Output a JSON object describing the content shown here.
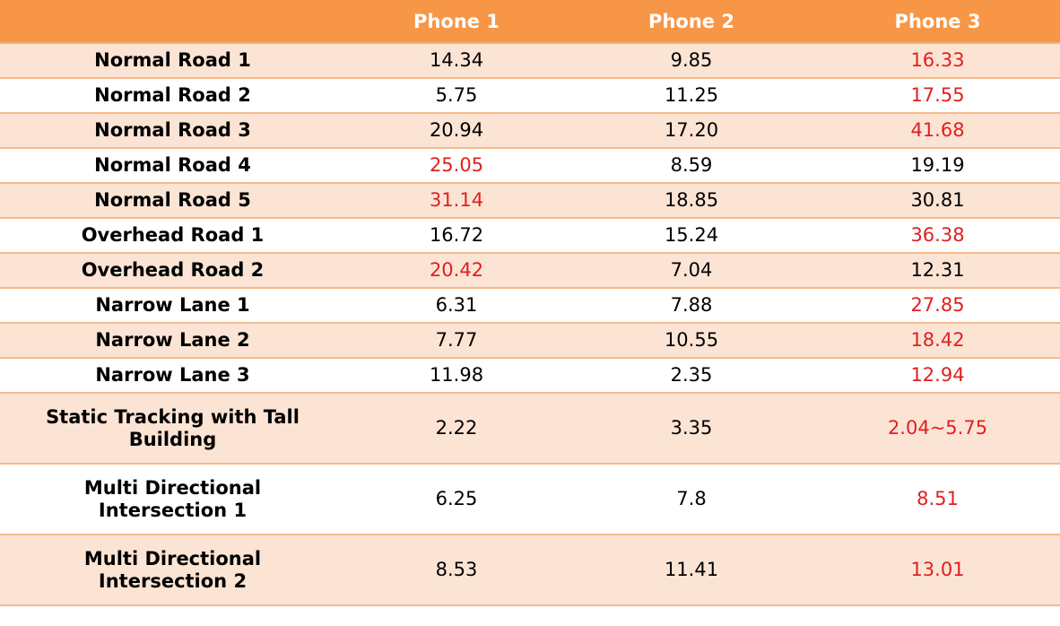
{
  "chart_data": {
    "type": "table",
    "columns": [
      "",
      "Phone 1",
      "Phone 2",
      "Phone 3"
    ],
    "rows": [
      {
        "label": "Normal Road 1",
        "values": [
          "14.34",
          "9.85",
          "16.33"
        ],
        "highlight": [
          false,
          false,
          true
        ]
      },
      {
        "label": "Normal Road 2",
        "values": [
          "5.75",
          "11.25",
          "17.55"
        ],
        "highlight": [
          false,
          false,
          true
        ]
      },
      {
        "label": "Normal Road 3",
        "values": [
          "20.94",
          "17.20",
          "41.68"
        ],
        "highlight": [
          false,
          false,
          true
        ]
      },
      {
        "label": "Normal Road 4",
        "values": [
          "25.05",
          "8.59",
          "19.19"
        ],
        "highlight": [
          true,
          false,
          false
        ]
      },
      {
        "label": "Normal Road 5",
        "values": [
          "31.14",
          "18.85",
          "30.81"
        ],
        "highlight": [
          true,
          false,
          false
        ]
      },
      {
        "label": "Overhead Road 1",
        "values": [
          "16.72",
          "15.24",
          "36.38"
        ],
        "highlight": [
          false,
          false,
          true
        ]
      },
      {
        "label": "Overhead Road 2",
        "values": [
          "20.42",
          "7.04",
          "12.31"
        ],
        "highlight": [
          true,
          false,
          false
        ]
      },
      {
        "label": "Narrow Lane 1",
        "values": [
          "6.31",
          "7.88",
          "27.85"
        ],
        "highlight": [
          false,
          false,
          true
        ]
      },
      {
        "label": "Narrow Lane 2",
        "values": [
          "7.77",
          "10.55",
          "18.42"
        ],
        "highlight": [
          false,
          false,
          true
        ]
      },
      {
        "label": "Narrow Lane 3",
        "values": [
          "11.98",
          "2.35",
          "12.94"
        ],
        "highlight": [
          false,
          false,
          true
        ]
      },
      {
        "label": "Static Tracking with Tall Building",
        "values": [
          "2.22",
          "3.35",
          "2.04~5.75"
        ],
        "highlight": [
          false,
          false,
          true
        ]
      },
      {
        "label": "Multi Directional Intersection 1",
        "values": [
          "6.25",
          "7.8",
          "8.51"
        ],
        "highlight": [
          false,
          false,
          true
        ]
      },
      {
        "label": "Multi Directional Intersection 2",
        "values": [
          "8.53",
          "11.41",
          "13.01"
        ],
        "highlight": [
          false,
          false,
          true
        ]
      }
    ]
  },
  "colors": {
    "header_bg": "#f79646",
    "header_text": "#ffffff",
    "band_odd": "#fce4d5",
    "band_even": "#ffffff",
    "highlight_text": "#e02020"
  }
}
